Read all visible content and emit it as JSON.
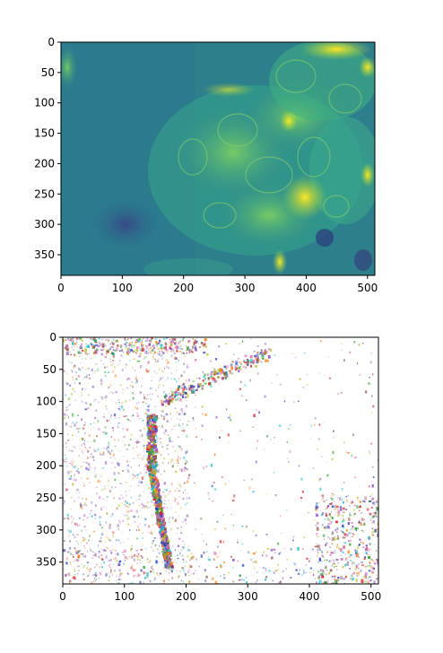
{
  "chart_data": [
    {
      "type": "heatmap",
      "title": "",
      "xlabel": "",
      "ylabel": "",
      "xlim": [
        0,
        512
      ],
      "ylim": [
        384,
        0
      ],
      "xticks": [
        0,
        100,
        200,
        300,
        400,
        500
      ],
      "yticks": [
        0,
        50,
        100,
        150,
        200,
        250,
        300,
        350
      ],
      "colormap": "viridis",
      "content": "microscopy image: clustered cells on right, background on left"
    },
    {
      "type": "heatmap",
      "title": "",
      "xlabel": "",
      "ylabel": "",
      "xlim": [
        0,
        512
      ],
      "ylim": [
        384,
        0
      ],
      "xticks": [
        0,
        100,
        200,
        300,
        400,
        500
      ],
      "yticks": [
        0,
        50,
        100,
        150,
        200,
        250,
        300,
        350
      ],
      "colormap": "multicolor sparse speckle on white",
      "content": "sparse colored speckle map with dense vertical band near x≈150"
    }
  ]
}
